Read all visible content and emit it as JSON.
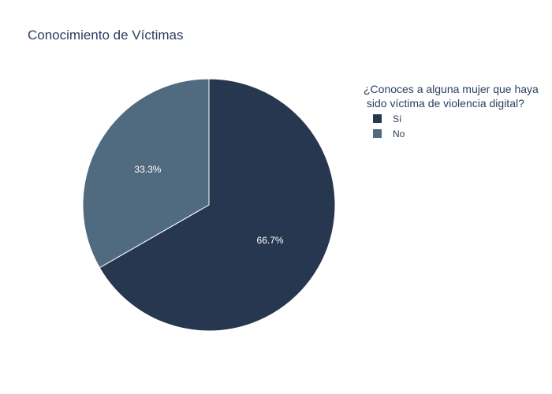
{
  "chart_data": {
    "type": "pie",
    "title": "Conocimiento de Víctimas",
    "legend": {
      "title_lines": [
        "¿Conoces a alguna mujer que haya",
        " sido víctima de violencia digital?"
      ],
      "placement": "top-right"
    },
    "slices": [
      {
        "label": "Sí",
        "value": 66.7,
        "text": "66.7%",
        "color": "#283750"
      },
      {
        "label": "No",
        "value": 33.3,
        "text": "33.3%",
        "color": "#506a80"
      }
    ],
    "direction": "clockwise",
    "rotation_start": "top"
  }
}
